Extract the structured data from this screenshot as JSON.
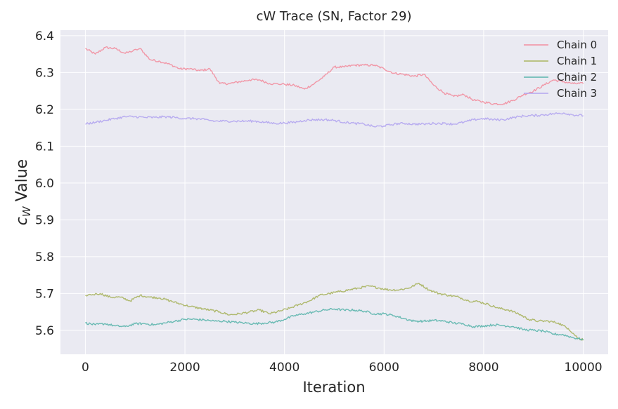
{
  "chart_data": {
    "type": "line",
    "title": "cW Trace (SN, Factor 29)",
    "xlabel": "Iteration",
    "ylabel_symbol": "c",
    "ylabel_subscript": "W",
    "ylabel_suffix": " Value",
    "xlim": [
      -500,
      10500
    ],
    "ylim": [
      5.535,
      6.415
    ],
    "x_ticks": [
      0,
      2000,
      4000,
      6000,
      8000,
      10000
    ],
    "y_ticks": [
      5.6,
      5.7,
      5.8,
      5.9,
      6.0,
      6.1,
      6.2,
      6.3,
      6.4
    ],
    "grid": true,
    "legend_position": "top-right",
    "colors": {
      "background": "#eaeaf2",
      "grid": "#ffffff",
      "text": "#262626"
    },
    "series": [
      {
        "name": "Chain 0",
        "color": "#f28e9f",
        "points": [
          [
            0,
            6.365
          ],
          [
            200,
            6.35
          ],
          [
            400,
            6.368
          ],
          [
            600,
            6.365
          ],
          [
            800,
            6.352
          ],
          [
            1100,
            6.365
          ],
          [
            1300,
            6.335
          ],
          [
            1500,
            6.33
          ],
          [
            1700,
            6.322
          ],
          [
            1900,
            6.31
          ],
          [
            2100,
            6.31
          ],
          [
            2300,
            6.305
          ],
          [
            2500,
            6.31
          ],
          [
            2700,
            6.27
          ],
          [
            2900,
            6.27
          ],
          [
            3100,
            6.275
          ],
          [
            3300,
            6.28
          ],
          [
            3500,
            6.28
          ],
          [
            3700,
            6.27
          ],
          [
            4000,
            6.268
          ],
          [
            4200,
            6.265
          ],
          [
            4400,
            6.255
          ],
          [
            4600,
            6.27
          ],
          [
            4800,
            6.29
          ],
          [
            5000,
            6.315
          ],
          [
            5200,
            6.315
          ],
          [
            5400,
            6.32
          ],
          [
            5600,
            6.32
          ],
          [
            5800,
            6.32
          ],
          [
            6000,
            6.31
          ],
          [
            6200,
            6.298
          ],
          [
            6400,
            6.295
          ],
          [
            6600,
            6.29
          ],
          [
            6800,
            6.295
          ],
          [
            7000,
            6.265
          ],
          [
            7200,
            6.245
          ],
          [
            7400,
            6.235
          ],
          [
            7600,
            6.24
          ],
          [
            7800,
            6.225
          ],
          [
            8000,
            6.22
          ],
          [
            8200,
            6.215
          ],
          [
            8400,
            6.215
          ],
          [
            8600,
            6.225
          ],
          [
            8800,
            6.24
          ],
          [
            9000,
            6.25
          ],
          [
            9200,
            6.265
          ],
          [
            9400,
            6.28
          ],
          [
            9600,
            6.275
          ],
          [
            9800,
            6.27
          ],
          [
            10000,
            6.27
          ]
        ]
      },
      {
        "name": "Chain 1",
        "color": "#a9b45f",
        "points": [
          [
            0,
            5.695
          ],
          [
            300,
            5.7
          ],
          [
            500,
            5.69
          ],
          [
            700,
            5.69
          ],
          [
            900,
            5.68
          ],
          [
            1100,
            5.695
          ],
          [
            1300,
            5.69
          ],
          [
            1500,
            5.688
          ],
          [
            1700,
            5.68
          ],
          [
            1900,
            5.672
          ],
          [
            2100,
            5.665
          ],
          [
            2300,
            5.66
          ],
          [
            2500,
            5.655
          ],
          [
            2700,
            5.65
          ],
          [
            2900,
            5.642
          ],
          [
            3100,
            5.645
          ],
          [
            3300,
            5.65
          ],
          [
            3500,
            5.655
          ],
          [
            3700,
            5.645
          ],
          [
            3900,
            5.652
          ],
          [
            4100,
            5.66
          ],
          [
            4300,
            5.67
          ],
          [
            4500,
            5.68
          ],
          [
            4700,
            5.695
          ],
          [
            4900,
            5.7
          ],
          [
            5100,
            5.705
          ],
          [
            5300,
            5.71
          ],
          [
            5500,
            5.715
          ],
          [
            5700,
            5.72
          ],
          [
            5900,
            5.715
          ],
          [
            6100,
            5.71
          ],
          [
            6300,
            5.71
          ],
          [
            6500,
            5.715
          ],
          [
            6700,
            5.728
          ],
          [
            6900,
            5.71
          ],
          [
            7100,
            5.7
          ],
          [
            7300,
            5.695
          ],
          [
            7500,
            5.69
          ],
          [
            7700,
            5.68
          ],
          [
            7900,
            5.678
          ],
          [
            8100,
            5.67
          ],
          [
            8300,
            5.66
          ],
          [
            8500,
            5.655
          ],
          [
            8700,
            5.645
          ],
          [
            8900,
            5.63
          ],
          [
            9100,
            5.625
          ],
          [
            9300,
            5.625
          ],
          [
            9500,
            5.62
          ],
          [
            9700,
            5.605
          ],
          [
            9900,
            5.578
          ],
          [
            10000,
            5.575
          ]
        ]
      },
      {
        "name": "Chain 2",
        "color": "#5bb5ac",
        "points": [
          [
            0,
            5.62
          ],
          [
            200,
            5.615
          ],
          [
            400,
            5.618
          ],
          [
            600,
            5.612
          ],
          [
            800,
            5.61
          ],
          [
            1000,
            5.618
          ],
          [
            1200,
            5.618
          ],
          [
            1400,
            5.615
          ],
          [
            1600,
            5.62
          ],
          [
            1800,
            5.625
          ],
          [
            2000,
            5.63
          ],
          [
            2200,
            5.63
          ],
          [
            2400,
            5.628
          ],
          [
            2600,
            5.625
          ],
          [
            2800,
            5.625
          ],
          [
            3000,
            5.622
          ],
          [
            3200,
            5.62
          ],
          [
            3400,
            5.618
          ],
          [
            3600,
            5.62
          ],
          [
            3800,
            5.622
          ],
          [
            4000,
            5.63
          ],
          [
            4200,
            5.64
          ],
          [
            4400,
            5.645
          ],
          [
            4600,
            5.65
          ],
          [
            4800,
            5.655
          ],
          [
            5000,
            5.658
          ],
          [
            5200,
            5.655
          ],
          [
            5400,
            5.655
          ],
          [
            5600,
            5.652
          ],
          [
            5800,
            5.645
          ],
          [
            6000,
            5.645
          ],
          [
            6200,
            5.64
          ],
          [
            6400,
            5.632
          ],
          [
            6600,
            5.625
          ],
          [
            6800,
            5.625
          ],
          [
            7000,
            5.627
          ],
          [
            7200,
            5.625
          ],
          [
            7400,
            5.62
          ],
          [
            7600,
            5.617
          ],
          [
            7800,
            5.61
          ],
          [
            8000,
            5.612
          ],
          [
            8200,
            5.615
          ],
          [
            8400,
            5.613
          ],
          [
            8600,
            5.61
          ],
          [
            8800,
            5.602
          ],
          [
            9000,
            5.6
          ],
          [
            9200,
            5.598
          ],
          [
            9400,
            5.59
          ],
          [
            9600,
            5.588
          ],
          [
            9800,
            5.58
          ],
          [
            10000,
            5.575
          ]
        ]
      },
      {
        "name": "Chain 3",
        "color": "#b3a5f0",
        "points": [
          [
            0,
            6.16
          ],
          [
            200,
            6.165
          ],
          [
            400,
            6.17
          ],
          [
            600,
            6.175
          ],
          [
            800,
            6.18
          ],
          [
            1000,
            6.18
          ],
          [
            1200,
            6.178
          ],
          [
            1400,
            6.178
          ],
          [
            1600,
            6.18
          ],
          [
            1800,
            6.178
          ],
          [
            2000,
            6.175
          ],
          [
            2200,
            6.175
          ],
          [
            2400,
            6.172
          ],
          [
            2600,
            6.168
          ],
          [
            2800,
            6.168
          ],
          [
            3000,
            6.168
          ],
          [
            3200,
            6.168
          ],
          [
            3400,
            6.168
          ],
          [
            3600,
            6.165
          ],
          [
            3800,
            6.162
          ],
          [
            4000,
            6.163
          ],
          [
            4200,
            6.165
          ],
          [
            4400,
            6.17
          ],
          [
            4600,
            6.172
          ],
          [
            4800,
            6.172
          ],
          [
            5000,
            6.17
          ],
          [
            5200,
            6.165
          ],
          [
            5400,
            6.162
          ],
          [
            5600,
            6.16
          ],
          [
            5800,
            6.153
          ],
          [
            6000,
            6.155
          ],
          [
            6200,
            6.16
          ],
          [
            6400,
            6.162
          ],
          [
            6600,
            6.16
          ],
          [
            6800,
            6.16
          ],
          [
            7000,
            6.162
          ],
          [
            7200,
            6.162
          ],
          [
            7400,
            6.16
          ],
          [
            7600,
            6.165
          ],
          [
            7800,
            6.172
          ],
          [
            8000,
            6.175
          ],
          [
            8200,
            6.172
          ],
          [
            8400,
            6.172
          ],
          [
            8600,
            6.178
          ],
          [
            8800,
            6.182
          ],
          [
            9000,
            6.183
          ],
          [
            9200,
            6.185
          ],
          [
            9400,
            6.188
          ],
          [
            9600,
            6.19
          ],
          [
            9800,
            6.185
          ],
          [
            10000,
            6.183
          ]
        ]
      }
    ]
  }
}
